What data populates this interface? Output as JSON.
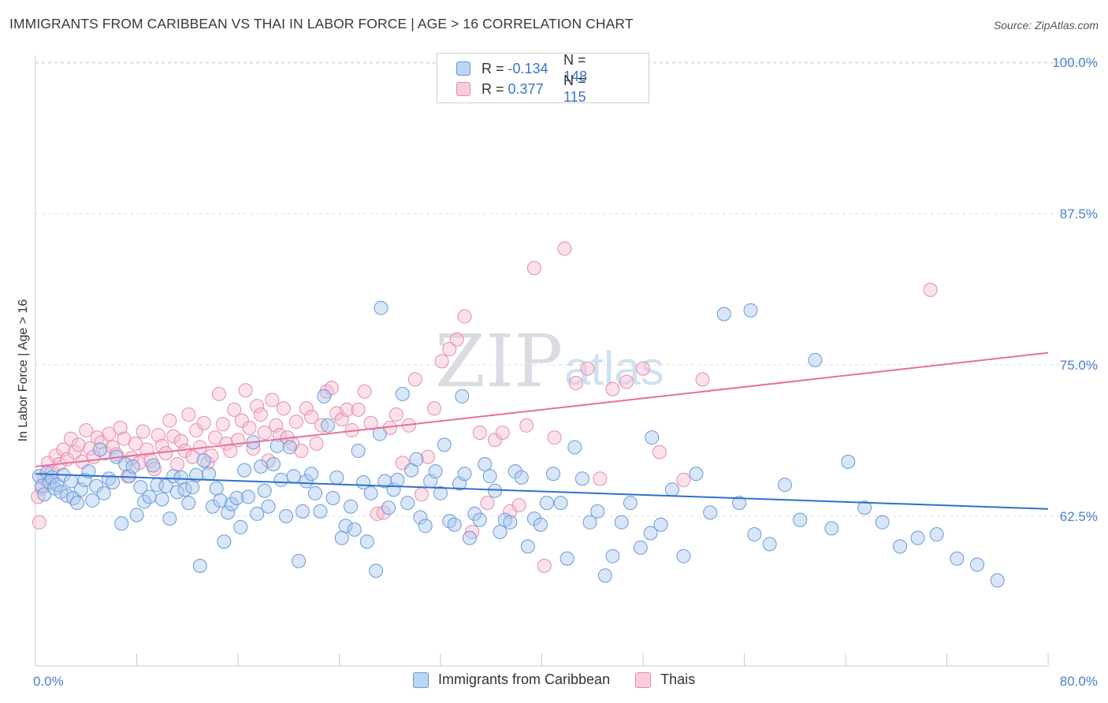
{
  "header": {
    "title": "IMMIGRANTS FROM CARIBBEAN VS THAI IN LABOR FORCE | AGE > 16 CORRELATION CHART",
    "source": "Source: ZipAtlas.com"
  },
  "watermark": {
    "part1": "ZIP",
    "part2": "atlas"
  },
  "legend": {
    "rows": [
      {
        "r_label": "R =",
        "r_value": "-0.134",
        "n_label": "N =",
        "n_value": "148"
      },
      {
        "r_label": "R =",
        "r_value": "0.377",
        "n_label": "N =",
        "n_value": "115"
      }
    ]
  },
  "colors": {
    "blue_fill": "#a9c8ef",
    "blue_stroke": "#6a9ad9",
    "blue_line": "#2f6fcf",
    "pink_fill": "#f6bfd1",
    "pink_stroke": "#e88aab",
    "pink_line": "#e8709a",
    "grid": "#dddddd",
    "axis_text": "#4a7fd0"
  },
  "chart_data": {
    "type": "scatter",
    "title": "IMMIGRANTS FROM CARIBBEAN VS THAI IN LABOR FORCE | AGE > 16 CORRELATION CHART",
    "xlabel": "",
    "ylabel": "In Labor Force | Age > 16",
    "xlim": [
      0,
      80
    ],
    "ylim": [
      51,
      102
    ],
    "x_tick_labels": [
      "0.0%",
      "80.0%"
    ],
    "y_ticks": [
      62.5,
      75.0,
      87.5,
      100.0
    ],
    "y_tick_labels": [
      "62.5%",
      "75.0%",
      "87.5%",
      "100.0%"
    ],
    "grid": true,
    "legend_position": "top-center",
    "series": [
      {
        "name": "Immigrants from Caribbean",
        "color": "#a9c8ef",
        "R": -0.134,
        "N": 148,
        "trend": {
          "x": [
            0,
            80
          ],
          "y": [
            66.0,
            63.1
          ]
        },
        "points": [
          [
            0.3,
            65.8
          ],
          [
            0.5,
            65.0
          ],
          [
            0.7,
            64.3
          ],
          [
            0.9,
            66.1
          ],
          [
            1.1,
            65.3
          ],
          [
            1.3,
            65.7
          ],
          [
            1.5,
            64.8
          ],
          [
            1.7,
            65.1
          ],
          [
            2.0,
            64.5
          ],
          [
            2.2,
            65.9
          ],
          [
            2.5,
            64.2
          ],
          [
            2.8,
            65.4
          ],
          [
            3.0,
            64.0
          ],
          [
            3.3,
            63.6
          ],
          [
            3.6,
            64.7
          ],
          [
            3.9,
            65.5
          ],
          [
            4.2,
            66.2
          ],
          [
            4.5,
            63.8
          ],
          [
            4.8,
            65.0
          ],
          [
            5.1,
            68.0
          ],
          [
            5.4,
            64.4
          ],
          [
            5.8,
            65.6
          ],
          [
            6.1,
            65.3
          ],
          [
            6.4,
            67.4
          ],
          [
            6.8,
            61.9
          ],
          [
            7.1,
            66.8
          ],
          [
            7.4,
            65.8
          ],
          [
            7.7,
            66.6
          ],
          [
            8.0,
            62.6
          ],
          [
            8.3,
            64.9
          ],
          [
            8.6,
            63.7
          ],
          [
            9.0,
            64.1
          ],
          [
            9.3,
            66.7
          ],
          [
            9.6,
            65.1
          ],
          [
            10.0,
            63.9
          ],
          [
            10.3,
            65.0
          ],
          [
            10.6,
            62.3
          ],
          [
            10.9,
            65.8
          ],
          [
            11.2,
            64.5
          ],
          [
            11.5,
            65.7
          ],
          [
            11.8,
            64.7
          ],
          [
            12.1,
            63.6
          ],
          [
            12.4,
            64.9
          ],
          [
            12.7,
            65.9
          ],
          [
            13.0,
            58.4
          ],
          [
            13.3,
            67.1
          ],
          [
            13.7,
            66.0
          ],
          [
            14.0,
            63.3
          ],
          [
            14.3,
            64.8
          ],
          [
            14.6,
            63.8
          ],
          [
            14.9,
            60.4
          ],
          [
            15.2,
            62.8
          ],
          [
            15.5,
            63.5
          ],
          [
            15.9,
            64.0
          ],
          [
            16.2,
            61.6
          ],
          [
            16.5,
            66.3
          ],
          [
            16.8,
            64.1
          ],
          [
            17.2,
            68.6
          ],
          [
            17.5,
            62.7
          ],
          [
            17.8,
            66.6
          ],
          [
            18.1,
            64.6
          ],
          [
            18.4,
            63.3
          ],
          [
            18.8,
            66.8
          ],
          [
            19.1,
            68.3
          ],
          [
            19.4,
            65.5
          ],
          [
            19.8,
            62.5
          ],
          [
            20.1,
            68.2
          ],
          [
            20.4,
            65.8
          ],
          [
            20.8,
            58.8
          ],
          [
            21.1,
            62.9
          ],
          [
            21.4,
            65.4
          ],
          [
            21.8,
            66.0
          ],
          [
            22.1,
            64.4
          ],
          [
            22.5,
            62.9
          ],
          [
            22.8,
            72.4
          ],
          [
            23.1,
            70.0
          ],
          [
            23.5,
            64.0
          ],
          [
            23.8,
            65.7
          ],
          [
            24.2,
            60.7
          ],
          [
            24.5,
            61.7
          ],
          [
            24.9,
            63.3
          ],
          [
            25.2,
            61.4
          ],
          [
            25.5,
            67.9
          ],
          [
            25.9,
            65.3
          ],
          [
            26.2,
            60.4
          ],
          [
            26.5,
            64.4
          ],
          [
            26.9,
            58.0
          ],
          [
            27.2,
            69.3
          ],
          [
            27.6,
            65.4
          ],
          [
            27.9,
            63.2
          ],
          [
            28.3,
            64.7
          ],
          [
            28.6,
            65.5
          ],
          [
            29.0,
            72.6
          ],
          [
            29.4,
            63.6
          ],
          [
            29.7,
            66.3
          ],
          [
            30.1,
            67.2
          ],
          [
            30.4,
            62.4
          ],
          [
            30.8,
            61.7
          ],
          [
            31.2,
            65.4
          ],
          [
            31.6,
            66.2
          ],
          [
            32.0,
            64.4
          ],
          [
            32.3,
            68.4
          ],
          [
            32.7,
            62.1
          ],
          [
            33.1,
            61.8
          ],
          [
            33.5,
            65.2
          ],
          [
            33.9,
            66.0
          ],
          [
            34.3,
            60.7
          ],
          [
            34.7,
            62.7
          ],
          [
            35.1,
            62.2
          ],
          [
            35.5,
            66.8
          ],
          [
            35.9,
            65.8
          ],
          [
            36.3,
            64.6
          ],
          [
            36.7,
            61.2
          ],
          [
            37.1,
            62.2
          ],
          [
            37.5,
            62.0
          ],
          [
            37.9,
            66.2
          ],
          [
            38.4,
            65.7
          ],
          [
            38.9,
            60.0
          ],
          [
            39.4,
            62.3
          ],
          [
            39.9,
            61.8
          ],
          [
            40.4,
            63.6
          ],
          [
            40.9,
            66.0
          ],
          [
            41.5,
            63.6
          ],
          [
            42.0,
            59.0
          ],
          [
            42.6,
            68.2
          ],
          [
            43.2,
            65.6
          ],
          [
            43.8,
            62.0
          ],
          [
            44.4,
            62.9
          ],
          [
            45.0,
            57.6
          ],
          [
            45.6,
            59.2
          ],
          [
            46.3,
            62.0
          ],
          [
            47.0,
            63.6
          ],
          [
            47.8,
            59.9
          ],
          [
            48.6,
            61.1
          ],
          [
            49.4,
            61.8
          ],
          [
            50.3,
            64.7
          ],
          [
            51.2,
            59.2
          ],
          [
            52.2,
            66.0
          ],
          [
            53.3,
            62.8
          ],
          [
            54.4,
            79.2
          ],
          [
            55.6,
            63.6
          ],
          [
            56.8,
            61.0
          ],
          [
            58.0,
            60.2
          ],
          [
            59.2,
            65.1
          ],
          [
            60.4,
            62.2
          ],
          [
            61.6,
            75.4
          ],
          [
            62.9,
            61.5
          ],
          [
            64.2,
            67.0
          ],
          [
            65.5,
            63.2
          ],
          [
            66.9,
            62.0
          ],
          [
            68.3,
            60.0
          ],
          [
            69.7,
            60.7
          ],
          [
            71.2,
            61.0
          ],
          [
            72.8,
            59.0
          ],
          [
            74.4,
            58.5
          ],
          [
            76.0,
            57.2
          ],
          [
            56.5,
            79.5
          ],
          [
            27.3,
            79.7
          ],
          [
            33.7,
            72.4
          ],
          [
            48.7,
            69.0
          ]
        ]
      },
      {
        "name": "Thais",
        "color": "#f6bfd1",
        "R": 0.377,
        "N": 115,
        "trend": {
          "x": [
            0,
            80
          ],
          "y": [
            66.6,
            76.0
          ]
        },
        "points": [
          [
            0.2,
            64.1
          ],
          [
            0.3,
            62.0
          ],
          [
            0.5,
            64.8
          ],
          [
            0.7,
            65.6
          ],
          [
            1.0,
            66.9
          ],
          [
            1.3,
            66.2
          ],
          [
            1.6,
            67.5
          ],
          [
            1.9,
            66.8
          ],
          [
            2.2,
            68.0
          ],
          [
            2.5,
            67.2
          ],
          [
            2.8,
            68.9
          ],
          [
            3.1,
            67.8
          ],
          [
            3.4,
            68.4
          ],
          [
            3.7,
            67.0
          ],
          [
            4.0,
            69.6
          ],
          [
            4.3,
            68.1
          ],
          [
            4.6,
            67.4
          ],
          [
            4.9,
            69.0
          ],
          [
            5.2,
            68.6
          ],
          [
            5.5,
            67.7
          ],
          [
            5.8,
            69.3
          ],
          [
            6.1,
            68.2
          ],
          [
            6.4,
            67.6
          ],
          [
            6.7,
            69.8
          ],
          [
            7.0,
            68.9
          ],
          [
            7.3,
            65.8
          ],
          [
            7.6,
            67.3
          ],
          [
            7.9,
            68.5
          ],
          [
            8.2,
            66.9
          ],
          [
            8.5,
            69.5
          ],
          [
            8.8,
            68.0
          ],
          [
            9.1,
            67.1
          ],
          [
            9.4,
            66.4
          ],
          [
            9.7,
            69.2
          ],
          [
            10.0,
            68.3
          ],
          [
            10.3,
            67.7
          ],
          [
            10.6,
            70.4
          ],
          [
            10.9,
            69.1
          ],
          [
            11.2,
            66.8
          ],
          [
            11.5,
            68.7
          ],
          [
            11.8,
            67.9
          ],
          [
            12.1,
            70.9
          ],
          [
            12.4,
            67.4
          ],
          [
            12.7,
            69.6
          ],
          [
            13.0,
            68.2
          ],
          [
            13.3,
            70.2
          ],
          [
            13.6,
            66.9
          ],
          [
            13.9,
            67.5
          ],
          [
            14.2,
            69.0
          ],
          [
            14.5,
            72.6
          ],
          [
            14.8,
            70.1
          ],
          [
            15.1,
            68.5
          ],
          [
            15.4,
            67.9
          ],
          [
            15.7,
            71.3
          ],
          [
            16.0,
            68.8
          ],
          [
            16.3,
            70.4
          ],
          [
            16.6,
            72.9
          ],
          [
            16.9,
            69.8
          ],
          [
            17.2,
            68.1
          ],
          [
            17.5,
            71.6
          ],
          [
            17.8,
            70.9
          ],
          [
            18.1,
            69.4
          ],
          [
            18.4,
            67.1
          ],
          [
            18.7,
            72.1
          ],
          [
            19.0,
            70.0
          ],
          [
            19.3,
            69.2
          ],
          [
            19.6,
            71.4
          ],
          [
            19.9,
            69.0
          ],
          [
            20.3,
            68.5
          ],
          [
            20.6,
            70.3
          ],
          [
            21.0,
            67.9
          ],
          [
            21.4,
            71.4
          ],
          [
            21.8,
            70.7
          ],
          [
            22.2,
            68.5
          ],
          [
            22.6,
            70.0
          ],
          [
            23.0,
            72.8
          ],
          [
            23.4,
            73.1
          ],
          [
            23.8,
            71.0
          ],
          [
            24.2,
            70.5
          ],
          [
            24.6,
            71.3
          ],
          [
            25.0,
            69.6
          ],
          [
            25.5,
            71.3
          ],
          [
            26.0,
            72.8
          ],
          [
            26.5,
            70.2
          ],
          [
            27.0,
            62.7
          ],
          [
            27.5,
            62.8
          ],
          [
            28.0,
            69.8
          ],
          [
            28.5,
            70.9
          ],
          [
            29.0,
            66.9
          ],
          [
            29.5,
            70.0
          ],
          [
            30.0,
            73.8
          ],
          [
            30.5,
            64.3
          ],
          [
            31.0,
            67.4
          ],
          [
            31.5,
            71.4
          ],
          [
            32.1,
            75.3
          ],
          [
            32.7,
            76.3
          ],
          [
            33.3,
            77.1
          ],
          [
            33.9,
            79.0
          ],
          [
            34.5,
            61.2
          ],
          [
            35.1,
            69.4
          ],
          [
            35.7,
            63.6
          ],
          [
            36.3,
            68.8
          ],
          [
            36.9,
            69.4
          ],
          [
            37.5,
            62.9
          ],
          [
            38.2,
            63.4
          ],
          [
            38.8,
            70.0
          ],
          [
            39.4,
            83.0
          ],
          [
            40.2,
            58.4
          ],
          [
            41.0,
            69.0
          ],
          [
            41.8,
            84.6
          ],
          [
            42.7,
            73.5
          ],
          [
            43.6,
            74.7
          ],
          [
            44.6,
            65.6
          ],
          [
            45.6,
            73.0
          ],
          [
            46.7,
            73.6
          ],
          [
            48.0,
            74.7
          ],
          [
            49.3,
            67.8
          ],
          [
            51.2,
            65.5
          ],
          [
            52.7,
            73.8
          ],
          [
            70.7,
            81.2
          ]
        ]
      }
    ]
  },
  "bottom_legend": {
    "items": [
      {
        "label": "Immigrants from Caribbean"
      },
      {
        "label": "Thais"
      }
    ]
  }
}
